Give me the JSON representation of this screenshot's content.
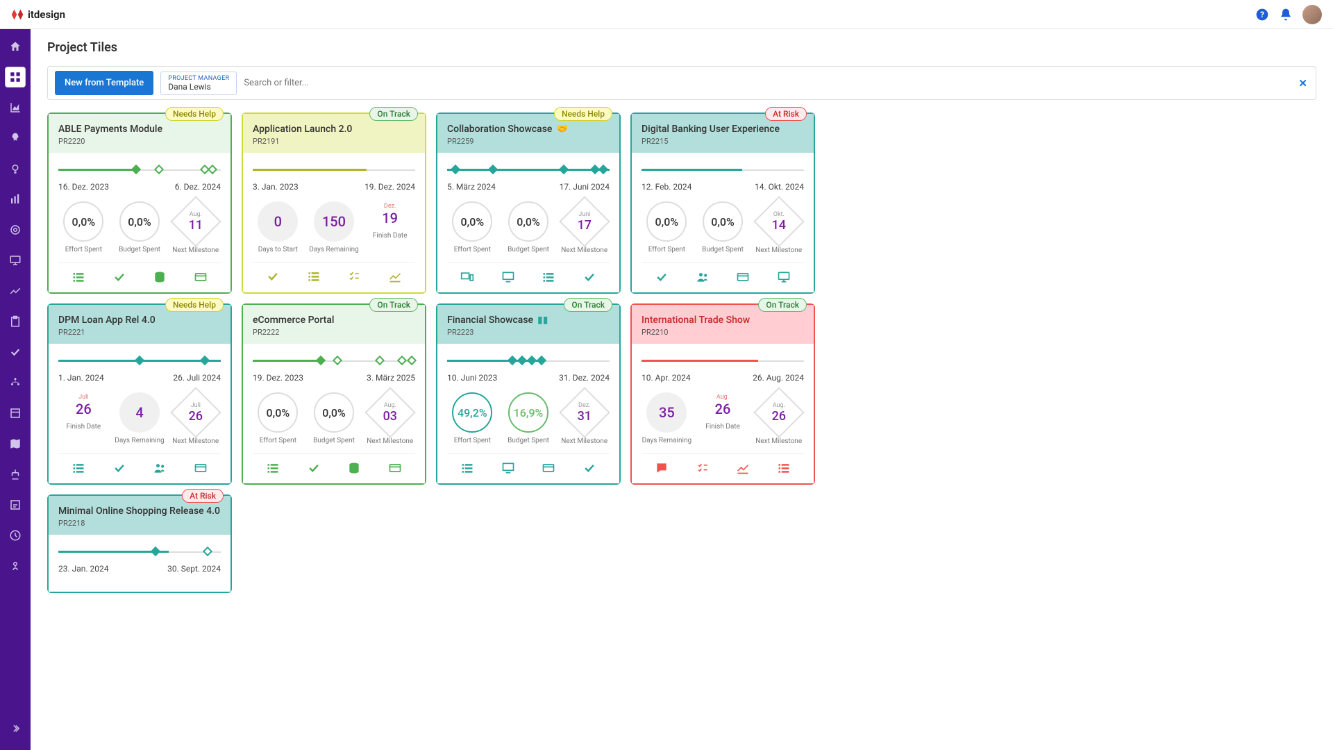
{
  "brand": "itdesign",
  "page_title": "Project Tiles",
  "toolbar": {
    "new_button": "New from Template",
    "filter_label": "PROJECT MANAGER",
    "filter_value": "Dana Lewis",
    "search_placeholder": "Search or filter..."
  },
  "statuses": {
    "needs_help": "Needs Help",
    "on_track": "On Track",
    "at_risk": "At Risk"
  },
  "metric_labels": {
    "effort_spent": "Effort Spent",
    "budget_spent": "Budget Spent",
    "next_milestone": "Next Milestone",
    "days_to_start": "Days to Start",
    "days_remaining": "Days Remaining",
    "finish_date": "Finish Date"
  },
  "tiles": [
    {
      "title": "ABLE Payments Module",
      "code": "PR2220",
      "status": "needs_help",
      "color": "green",
      "start": "16. Dez. 2023",
      "end": "6. Dez. 2024",
      "progress_pct": 48,
      "progress_color": "#4caf50",
      "markers": [
        {
          "pos": 48,
          "filled": true,
          "color": "#4caf50"
        },
        {
          "pos": 62,
          "filled": false,
          "color": "#4caf50"
        },
        {
          "pos": 90,
          "filled": false,
          "color": "#4caf50"
        },
        {
          "pos": 95,
          "filled": false,
          "color": "#4caf50"
        }
      ],
      "m1": {
        "type": "pct",
        "val": "0,0%",
        "lbl": "effort_spent"
      },
      "m2": {
        "type": "pct",
        "val": "0,0%",
        "lbl": "budget_spent"
      },
      "m3": {
        "type": "diamond",
        "month": "Aug.",
        "day": "11",
        "lbl": "next_milestone"
      },
      "icons": [
        "list",
        "check",
        "db",
        "card"
      ]
    },
    {
      "title": "Application Launch 2.0",
      "code": "PR2191",
      "status": "on_track",
      "color": "yellow",
      "start": "3. Jan. 2023",
      "end": "19. Dez. 2024",
      "progress_pct": 70,
      "progress_color": "#afb42b",
      "markers": [],
      "m1": {
        "type": "plain",
        "val": "0",
        "lbl": "days_to_start"
      },
      "m2": {
        "type": "plain",
        "val": "150",
        "lbl": "days_remaining"
      },
      "m3": {
        "type": "cal",
        "month": "Dez.",
        "day": "19",
        "lbl": "finish_date"
      },
      "icons": [
        "check",
        "list",
        "tasks",
        "chart"
      ]
    },
    {
      "title": "Collaboration Showcase",
      "code": "PR2259",
      "status": "needs_help",
      "color": "teal",
      "extra_icon": true,
      "start": "5. März 2024",
      "end": "17. Juni 2024",
      "progress_pct": 100,
      "progress_color": "#26a69a",
      "markers": [
        {
          "pos": 5,
          "filled": true,
          "color": "#26a69a"
        },
        {
          "pos": 28,
          "filled": true,
          "color": "#26a69a"
        },
        {
          "pos": 72,
          "filled": true,
          "color": "#26a69a"
        },
        {
          "pos": 91,
          "filled": true,
          "color": "#26a69a"
        },
        {
          "pos": 96,
          "filled": true,
          "color": "#26a69a"
        }
      ],
      "m1": {
        "type": "pct",
        "val": "0,0%",
        "lbl": "effort_spent"
      },
      "m2": {
        "type": "pct",
        "val": "0,0%",
        "lbl": "budget_spent"
      },
      "m3": {
        "type": "diamond",
        "month": "Juni",
        "day": "17",
        "lbl": "next_milestone"
      },
      "icons": [
        "devices",
        "screen",
        "list",
        "check"
      ]
    },
    {
      "title": "Digital Banking User Experience",
      "code": "PR2215",
      "status": "at_risk",
      "color": "teal",
      "start": "12. Feb. 2024",
      "end": "14. Okt. 2024",
      "progress_pct": 62,
      "progress_color": "#26a69a",
      "markers": [],
      "m1": {
        "type": "pct",
        "val": "0,0%",
        "lbl": "effort_spent"
      },
      "m2": {
        "type": "pct",
        "val": "0,0%",
        "lbl": "budget_spent"
      },
      "m3": {
        "type": "diamond",
        "month": "Okt.",
        "day": "14",
        "lbl": "next_milestone"
      },
      "icons": [
        "check",
        "team",
        "card",
        "monitor"
      ]
    },
    {
      "title": "DPM Loan App Rel 4.0",
      "code": "PR2221",
      "status": "needs_help",
      "color": "teal",
      "start": "1. Jan. 2024",
      "end": "26. Juli 2024",
      "progress_pct": 100,
      "progress_color": "#26a69a",
      "markers": [
        {
          "pos": 50,
          "filled": true,
          "color": "#26a69a"
        },
        {
          "pos": 90,
          "filled": true,
          "color": "#26a69a"
        }
      ],
      "m1": {
        "type": "cal",
        "month": "Juli",
        "day": "26",
        "lbl": "finish_date"
      },
      "m2": {
        "type": "plain",
        "val": "4",
        "lbl": "days_remaining"
      },
      "m3": {
        "type": "diamond",
        "month": "Juli",
        "day": "26",
        "lbl": "next_milestone"
      },
      "icons": [
        "list",
        "check",
        "team",
        "card"
      ]
    },
    {
      "title": "eCommerce Portal",
      "code": "PR2222",
      "status": "on_track",
      "color": "green",
      "start": "19. Dez. 2023",
      "end": "3. März 2025",
      "progress_pct": 42,
      "progress_color": "#4caf50",
      "markers": [
        {
          "pos": 42,
          "filled": true,
          "color": "#4caf50"
        },
        {
          "pos": 52,
          "filled": false,
          "color": "#4caf50"
        },
        {
          "pos": 78,
          "filled": false,
          "color": "#4caf50"
        },
        {
          "pos": 92,
          "filled": false,
          "color": "#4caf50"
        },
        {
          "pos": 98,
          "filled": false,
          "color": "#4caf50"
        }
      ],
      "m1": {
        "type": "pct",
        "val": "0,0%",
        "lbl": "effort_spent"
      },
      "m2": {
        "type": "pct",
        "val": "0,0%",
        "lbl": "budget_spent"
      },
      "m3": {
        "type": "diamond",
        "month": "Aug.",
        "day": "03",
        "lbl": "next_milestone"
      },
      "icons": [
        "list",
        "check",
        "db",
        "card"
      ]
    },
    {
      "title": "Financial Showcase",
      "code": "PR2223",
      "status": "on_track",
      "color": "teal",
      "extra_icon2": true,
      "start": "10. Juni 2023",
      "end": "31. Dez. 2024",
      "progress_pct": 58,
      "progress_color": "#26a69a",
      "markers": [
        {
          "pos": 40,
          "filled": true,
          "color": "#26a69a"
        },
        {
          "pos": 46,
          "filled": true,
          "color": "#26a69a"
        },
        {
          "pos": 52,
          "filled": true,
          "color": "#26a69a"
        },
        {
          "pos": 58,
          "filled": true,
          "color": "#26a69a"
        }
      ],
      "m1": {
        "type": "pct_accent",
        "val": "49,2%",
        "lbl": "effort_spent"
      },
      "m2": {
        "type": "pct_accent2",
        "val": "16,9%",
        "lbl": "budget_spent"
      },
      "m3": {
        "type": "diamond",
        "month": "Dez.",
        "day": "31",
        "lbl": "next_milestone"
      },
      "icons": [
        "list",
        "screen",
        "card",
        "check"
      ]
    },
    {
      "title": "International Trade Show",
      "code": "PR2210",
      "status": "on_track",
      "color": "red",
      "start": "10. Apr. 2024",
      "end": "26. Aug. 2024",
      "progress_pct": 72,
      "progress_color": "#ef5350",
      "markers": [],
      "m1": {
        "type": "plain",
        "val": "35",
        "lbl": "days_remaining"
      },
      "m2": {
        "type": "cal",
        "month": "Aug.",
        "day": "26",
        "lbl": "finish_date"
      },
      "m3": {
        "type": "diamond",
        "month": "Aug.",
        "day": "26",
        "lbl": "next_milestone"
      },
      "icons": [
        "comment",
        "tasks",
        "chart",
        "list"
      ]
    },
    {
      "title": "Minimal Online Shopping Release 4.0",
      "code": "PR2218",
      "status": "at_risk",
      "color": "teal",
      "start": "23. Jan. 2024",
      "end": "30. Sept. 2024",
      "progress_pct": 68,
      "progress_color": "#26a69a",
      "markers": [
        {
          "pos": 60,
          "filled": true,
          "color": "#26a69a"
        },
        {
          "pos": 92,
          "filled": false,
          "color": "#26a69a"
        }
      ],
      "partial": true
    }
  ]
}
